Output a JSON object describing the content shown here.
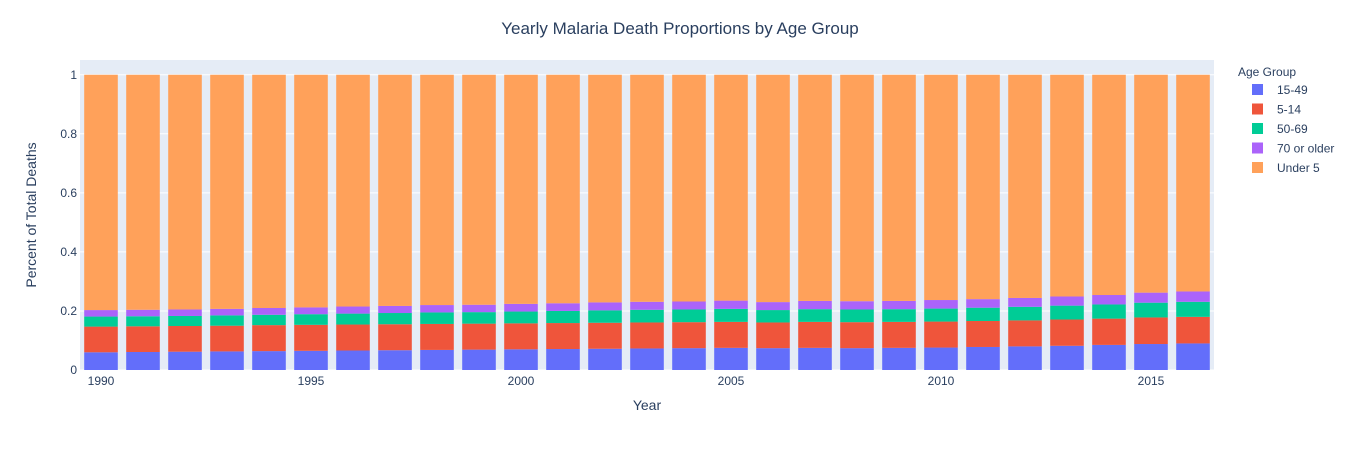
{
  "chart_data": {
    "type": "bar",
    "stacked": true,
    "title": "Yearly Malaria Death Proportions by Age Group",
    "xlabel": "Year",
    "ylabel": "Percent of Total Deaths",
    "ylim": [
      0,
      1.05
    ],
    "yticks": [
      0,
      0.2,
      0.4,
      0.6,
      0.8,
      1
    ],
    "ytick_labels": [
      "0",
      "0.2",
      "0.4",
      "0.6",
      "0.8",
      "1"
    ],
    "xticks": [
      1990,
      1995,
      2000,
      2005,
      2010,
      2015
    ],
    "xtick_labels": [
      "1990",
      "1995",
      "2000",
      "2005",
      "2010",
      "2015"
    ],
    "grid": true,
    "legend_title": "Age Group",
    "legend_position": "right",
    "categories": [
      1990,
      1991,
      1992,
      1993,
      1994,
      1995,
      1996,
      1997,
      1998,
      1999,
      2000,
      2001,
      2002,
      2003,
      2004,
      2005,
      2006,
      2007,
      2008,
      2009,
      2010,
      2011,
      2012,
      2013,
      2014,
      2015,
      2016
    ],
    "series": [
      {
        "name": "15-49",
        "color": "#636efa",
        "values": [
          0.06,
          0.061,
          0.062,
          0.063,
          0.064,
          0.065,
          0.066,
          0.067,
          0.068,
          0.069,
          0.07,
          0.071,
          0.072,
          0.073,
          0.074,
          0.075,
          0.074,
          0.075,
          0.074,
          0.075,
          0.076,
          0.078,
          0.08,
          0.082,
          0.085,
          0.088,
          0.09
        ]
      },
      {
        "name": "5-14",
        "color": "#ef553b",
        "values": [
          0.087,
          0.087,
          0.087,
          0.087,
          0.088,
          0.088,
          0.088,
          0.088,
          0.088,
          0.088,
          0.088,
          0.088,
          0.088,
          0.088,
          0.088,
          0.088,
          0.087,
          0.088,
          0.088,
          0.088,
          0.088,
          0.088,
          0.088,
          0.089,
          0.089,
          0.09,
          0.09
        ]
      },
      {
        "name": "50-69",
        "color": "#00cc96",
        "values": [
          0.034,
          0.034,
          0.034,
          0.035,
          0.035,
          0.036,
          0.037,
          0.038,
          0.039,
          0.039,
          0.04,
          0.041,
          0.042,
          0.043,
          0.043,
          0.044,
          0.042,
          0.043,
          0.043,
          0.043,
          0.044,
          0.045,
          0.046,
          0.047,
          0.048,
          0.05,
          0.051
        ]
      },
      {
        "name": "70 or older",
        "color": "#ab63fa",
        "values": [
          0.022,
          0.022,
          0.022,
          0.022,
          0.023,
          0.023,
          0.024,
          0.024,
          0.025,
          0.025,
          0.026,
          0.026,
          0.027,
          0.027,
          0.027,
          0.028,
          0.027,
          0.028,
          0.028,
          0.028,
          0.029,
          0.029,
          0.03,
          0.031,
          0.032,
          0.034,
          0.035
        ]
      },
      {
        "name": "Under 5",
        "color": "#ffa15a",
        "values": [
          0.797,
          0.796,
          0.795,
          0.793,
          0.79,
          0.788,
          0.785,
          0.783,
          0.78,
          0.779,
          0.776,
          0.774,
          0.771,
          0.769,
          0.768,
          0.765,
          0.77,
          0.766,
          0.767,
          0.766,
          0.763,
          0.76,
          0.756,
          0.751,
          0.746,
          0.738,
          0.734
        ]
      }
    ]
  }
}
